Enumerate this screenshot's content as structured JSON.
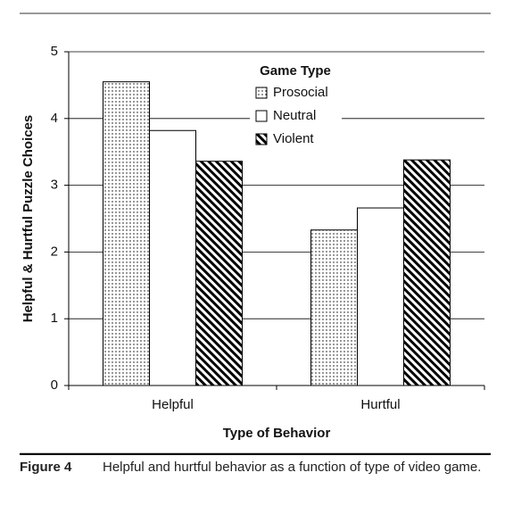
{
  "chart_data": {
    "type": "bar",
    "y_label": "Helpful & Hurtful Puzzle Choices",
    "x_label": "Type of Behavior",
    "categories": [
      "Helpful",
      "Hurtful"
    ],
    "legend_title": "Game Type",
    "series": [
      {
        "name": "Prosocial",
        "color": "#000000",
        "pattern": "dots",
        "values": [
          4.55,
          2.33
        ]
      },
      {
        "name": "Neutral",
        "color": "#000000",
        "pattern": "none",
        "values": [
          3.82,
          2.66
        ]
      },
      {
        "name": "Violent",
        "color": "#000000",
        "pattern": "stripes",
        "values": [
          3.36,
          3.38
        ]
      }
    ],
    "ylim": [
      0,
      5
    ],
    "yticks": [
      0,
      1,
      2,
      3,
      4,
      5
    ],
    "grid": true
  },
  "caption": {
    "label": "Figure 4",
    "text": "Helpful and hurtful behavior as a function of type of video game."
  }
}
